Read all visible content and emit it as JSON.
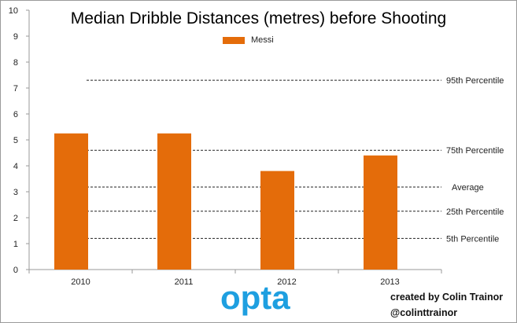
{
  "chart_data": {
    "type": "bar",
    "title": "Median Dribble Distances (metres) before Shooting",
    "categories": [
      "2010",
      "2011",
      "2012",
      "2013"
    ],
    "series": [
      {
        "name": "Messi",
        "values": [
          5.25,
          5.25,
          3.8,
          4.4
        ]
      }
    ],
    "ylim": [
      0,
      10
    ],
    "yticks": [
      0,
      1,
      2,
      3,
      4,
      5,
      6,
      7,
      8,
      9,
      10
    ],
    "reference_lines": [
      {
        "label": "95th Percentile",
        "value": 7.3
      },
      {
        "label": "75th Percentile",
        "value": 4.6
      },
      {
        "label": "Average",
        "value": 3.18
      },
      {
        "label": "25th Percentile",
        "value": 2.25
      },
      {
        "label": "5th Percentile",
        "value": 1.2
      }
    ],
    "legend_position": "top-center",
    "grid": false
  },
  "colors": {
    "bar": "#E46C0A",
    "logo": "#1E9FE0",
    "axis": "#9a9a9a"
  },
  "branding": {
    "logo_text": "opta",
    "credit_line1": "created by Colin Trainor",
    "credit_line2": "@colinttrainor"
  }
}
